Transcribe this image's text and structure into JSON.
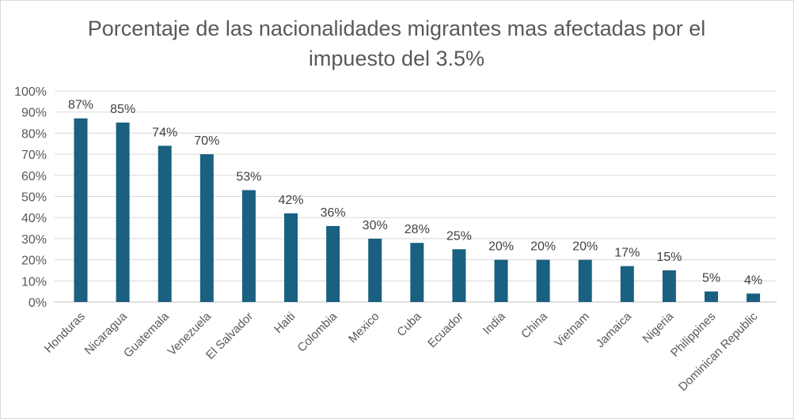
{
  "chart_data": {
    "type": "bar",
    "title_line1": "Porcentaje de las nacionalidades migrantes mas afectadas por el",
    "title_line2": "impuesto del 3.5%",
    "xlabel": "",
    "ylabel": "",
    "ylim": [
      0,
      100
    ],
    "y_ticks": [
      "0%",
      "10%",
      "20%",
      "30%",
      "40%",
      "50%",
      "60%",
      "70%",
      "80%",
      "90%",
      "100%"
    ],
    "grid": true,
    "legend": "none",
    "bar_color": "#1a6080",
    "categories": [
      "Honduras",
      "Nicaragua",
      "Guatemala",
      "Venezuela",
      "El Salvador",
      "Haiti",
      "Colombia",
      "Mexico",
      "Cuba",
      "Ecuador",
      "India",
      "China",
      "Vietnam",
      "Jamaica",
      "Nigeria",
      "Philippines",
      "Dominican Republic"
    ],
    "values": [
      87,
      85,
      74,
      70,
      53,
      42,
      36,
      30,
      28,
      25,
      20,
      20,
      20,
      17,
      15,
      5,
      4
    ],
    "data_labels": [
      "87%",
      "85%",
      "74%",
      "70%",
      "53%",
      "42%",
      "36%",
      "30%",
      "28%",
      "25%",
      "20%",
      "20%",
      "20%",
      "17%",
      "15%",
      "5%",
      "4%"
    ]
  }
}
